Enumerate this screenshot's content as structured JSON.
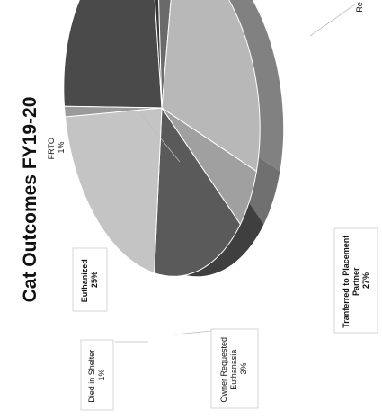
{
  "chart_data": {
    "type": "pie",
    "title": "Cat Outcomes FY19-20",
    "slices": [
      {
        "label": "Euthanized",
        "value_label": "25%",
        "value": 25,
        "color": "#4a4a4a"
      },
      {
        "label": "Died in Shelter",
        "value_label": "1%",
        "value": 1,
        "color": "#383838"
      },
      {
        "label": "Owner Requested Euthanasia",
        "value_label": "3%",
        "value": 3,
        "color": "#6a6a6a"
      },
      {
        "label": "Transferred to Placement Partner",
        "value_label": "27%",
        "value": 27,
        "color": "#b8b8b8"
      },
      {
        "label": "",
        "value_label": "",
        "value": 6,
        "color": "#a0a0a0"
      },
      {
        "label": "",
        "value_label": "",
        "value": 16,
        "color": "#5a5a5a"
      },
      {
        "label": "",
        "value_label": "",
        "value": 21,
        "color": "#c4c4c4"
      },
      {
        "label": "FRTO",
        "value_label": "1%",
        "value": 1,
        "color": "#9a9a9a"
      }
    ],
    "partial_label": "Re"
  },
  "labels": {
    "euthanized": [
      "Euthanized",
      "25%"
    ],
    "died": [
      "Died in Shelter",
      "1%"
    ],
    "owner": [
      "Owner Requested",
      "Euthanasia",
      "3%"
    ],
    "transfer": [
      "Tranferred to Placement",
      "Partner",
      "27%"
    ],
    "frto": [
      "FRTO",
      "1%"
    ]
  }
}
